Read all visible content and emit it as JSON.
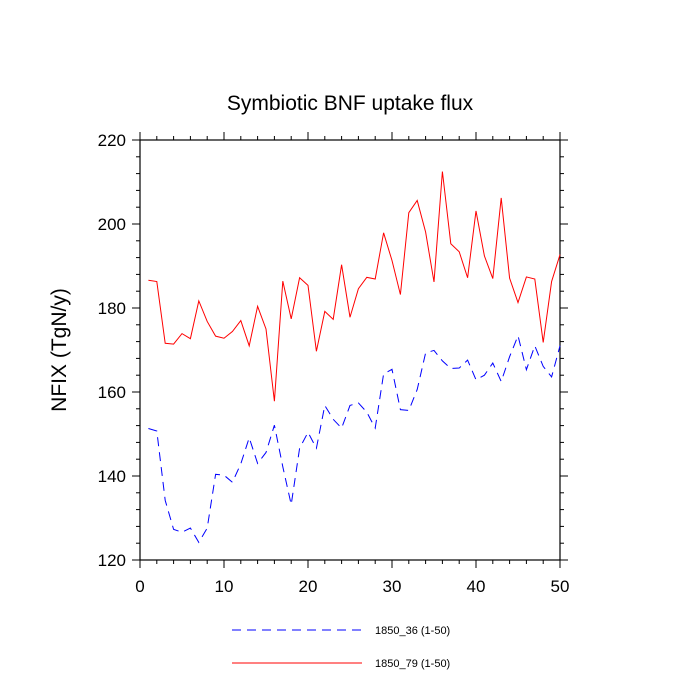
{
  "chart_data": {
    "type": "line",
    "title": "Symbiotic BNF uptake flux",
    "xlabel": "",
    "ylabel": "NFIX  (TgN/y)",
    "xlim": [
      0,
      50
    ],
    "ylim": [
      120,
      220
    ],
    "xticks": [
      0,
      10,
      20,
      30,
      40,
      50
    ],
    "yticks": [
      120,
      140,
      160,
      180,
      200,
      220
    ],
    "x": [
      1,
      2,
      3,
      4,
      5,
      6,
      7,
      8,
      9,
      10,
      11,
      12,
      13,
      14,
      15,
      16,
      17,
      18,
      19,
      20,
      21,
      22,
      23,
      24,
      25,
      26,
      27,
      28,
      29,
      30,
      31,
      32,
      33,
      34,
      35,
      36,
      37,
      38,
      39,
      40,
      41,
      42,
      43,
      44,
      45,
      46,
      47,
      48,
      49,
      50
    ],
    "series": [
      {
        "name": "1850_36 (1-50)",
        "color": "#0000ff",
        "style": "dashed",
        "values": [
          151.3,
          150.7,
          134.2,
          127.3,
          126.6,
          127.6,
          124.2,
          127.6,
          140.4,
          140.2,
          138.5,
          142.9,
          149.1,
          143.0,
          145.6,
          152.1,
          142.2,
          133.2,
          146.6,
          150.4,
          146.6,
          156.8,
          153.5,
          151.4,
          156.8,
          157.4,
          155.2,
          151.4,
          164.3,
          165.4,
          155.8,
          155.6,
          160.6,
          169.3,
          169.9,
          167.4,
          165.6,
          165.7,
          167.6,
          162.9,
          164.0,
          166.9,
          162.5,
          168.4,
          173.4,
          165.3,
          171.0,
          166.1,
          163.6,
          171.0
        ]
      },
      {
        "name": "1850_79 (1-50)",
        "color": "#ff0000",
        "style": "solid",
        "values": [
          186.6,
          186.3,
          171.6,
          171.4,
          173.9,
          172.7,
          181.7,
          176.8,
          173.3,
          172.8,
          174.4,
          177.0,
          171.0,
          180.4,
          175.0,
          157.8,
          186.4,
          177.4,
          187.2,
          185.4,
          169.7,
          179.2,
          177.3,
          190.3,
          177.8,
          184.6,
          187.3,
          186.9,
          197.9,
          191.3,
          183.2,
          202.7,
          205.6,
          198.1,
          186.2,
          212.5,
          195.3,
          193.4,
          187.2,
          203.1,
          192.4,
          187.0,
          206.2,
          187.1,
          181.3,
          187.4,
          186.9,
          171.8,
          186.3,
          192.7
        ]
      }
    ]
  }
}
